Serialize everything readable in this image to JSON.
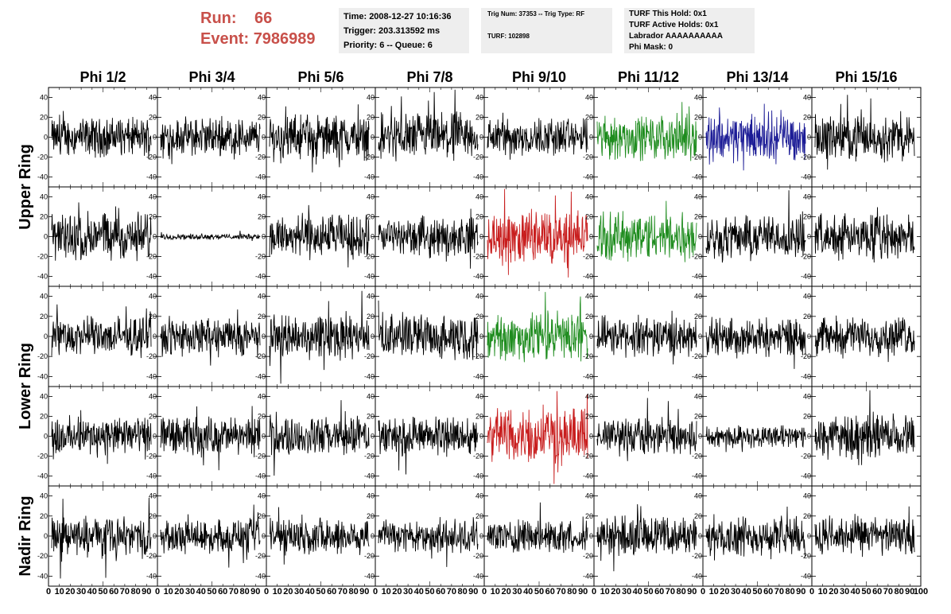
{
  "header": {
    "run_label": "Run:",
    "run_value": "66",
    "event_label": "Event:",
    "event_value": "7986989",
    "time": "Time: 2008-12-27 10:16:36",
    "trigger": "Trigger: 203.313592 ms",
    "priority": "Priority: 6 -- Queue: 6",
    "trig_num": "Trig Num: 37353 -- Trig Type: RF",
    "turf": "TURF: 102898",
    "turf_this_hold": "TURF This Hold: 0x1",
    "turf_active_holds": "TURF Active Holds: 0x1",
    "labrador": "Labrador AAAAAAAAAA",
    "phi_mask": "Phi Mask: 0"
  },
  "chart_data": {
    "type": "line",
    "columns": [
      "Phi 1/2",
      "Phi 3/4",
      "Phi 5/6",
      "Phi 7/8",
      "Phi 9/10",
      "Phi 11/12",
      "Phi 13/14",
      "Phi 15/16"
    ],
    "ring_labels": [
      {
        "label": "Upper Ring",
        "rows": [
          0,
          1
        ]
      },
      {
        "label": "Lower Ring",
        "rows": [
          2,
          3
        ]
      },
      {
        "label": "Nadir Ring",
        "rows": [
          4
        ]
      }
    ],
    "xlim": [
      0,
      100
    ],
    "ylim": [
      -50,
      50
    ],
    "yticks": [
      -40,
      -20,
      0,
      20,
      40
    ],
    "xticks": [
      "0",
      "10",
      "20",
      "30",
      "40",
      "50",
      "60",
      "70",
      "80",
      "90",
      "100"
    ],
    "colors": {
      "default": "#000000",
      "green": "#1e8c1e",
      "blue": "#1c1c96",
      "red": "#c81e1e"
    },
    "panels": [
      [
        {
          "c": "default",
          "a": 14
        },
        {
          "c": "default",
          "a": 14
        },
        {
          "c": "default",
          "a": 16
        },
        {
          "c": "default",
          "a": 18
        },
        {
          "c": "default",
          "a": 14
        },
        {
          "c": "green",
          "a": 16
        },
        {
          "c": "blue",
          "a": 18
        },
        {
          "c": "default",
          "a": 16
        }
      ],
      [
        {
          "c": "default",
          "a": 18
        },
        {
          "c": "default",
          "a": 2
        },
        {
          "c": "default",
          "a": 16
        },
        {
          "c": "default",
          "a": 14
        },
        {
          "c": "red",
          "a": 20
        },
        {
          "c": "green",
          "a": 18
        },
        {
          "c": "default",
          "a": 16
        },
        {
          "c": "default",
          "a": 16
        }
      ],
      [
        {
          "c": "default",
          "a": 14
        },
        {
          "c": "default",
          "a": 14
        },
        {
          "c": "default",
          "a": 16
        },
        {
          "c": "default",
          "a": 16
        },
        {
          "c": "green",
          "a": 18
        },
        {
          "c": "default",
          "a": 14
        },
        {
          "c": "default",
          "a": 14
        },
        {
          "c": "default",
          "a": 14
        }
      ],
      [
        {
          "c": "default",
          "a": 14
        },
        {
          "c": "default",
          "a": 14
        },
        {
          "c": "default",
          "a": 14
        },
        {
          "c": "default",
          "a": 14
        },
        {
          "c": "red",
          "a": 20
        },
        {
          "c": "default",
          "a": 14
        },
        {
          "c": "default",
          "a": 8
        },
        {
          "c": "default",
          "a": 16
        }
      ],
      [
        {
          "c": "default",
          "a": 14
        },
        {
          "c": "default",
          "a": 12
        },
        {
          "c": "default",
          "a": 14
        },
        {
          "c": "default",
          "a": 12
        },
        {
          "c": "default",
          "a": 12
        },
        {
          "c": "default",
          "a": 14
        },
        {
          "c": "default",
          "a": 14
        },
        {
          "c": "default",
          "a": 14
        }
      ]
    ]
  }
}
